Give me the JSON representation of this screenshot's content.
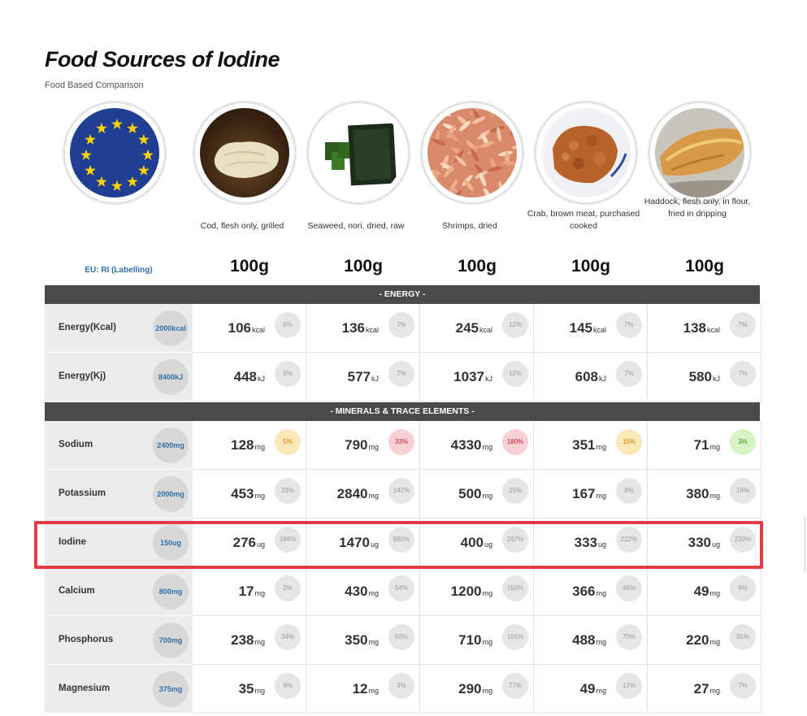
{
  "page": {
    "title": "Food Sources of Iodine",
    "subtitle": "Food Based Comparison"
  },
  "header": {
    "ri_label": "EU: RI (Labelling)"
  },
  "foods": [
    {
      "name": "Cod, flesh only, grilled",
      "amount": "100g"
    },
    {
      "name": "Seaweed, nori, dried, raw",
      "amount": "100g"
    },
    {
      "name": "Shrimps, dried",
      "amount": "100g"
    },
    {
      "name": "Crab, brown meat, purchased cooked",
      "amount": "100g"
    },
    {
      "name": "Haddock, flesh only, in flour, fried in dripping",
      "amount": "100g"
    }
  ],
  "sections": [
    {
      "title": "- ENERGY -",
      "rows": [
        {
          "name": "Energy(Kcal)",
          "ri": "2000kcal",
          "cells": [
            {
              "v": "106",
              "u": "kcal",
              "p": "5%",
              "c": ""
            },
            {
              "v": "136",
              "u": "kcal",
              "p": "7%",
              "c": ""
            },
            {
              "v": "245",
              "u": "kcal",
              "p": "12%",
              "c": ""
            },
            {
              "v": "145",
              "u": "kcal",
              "p": "7%",
              "c": ""
            },
            {
              "v": "138",
              "u": "kcal",
              "p": "7%",
              "c": ""
            }
          ]
        },
        {
          "name": "Energy(Kj)",
          "ri": "8400kJ",
          "cells": [
            {
              "v": "448",
              "u": "kJ",
              "p": "5%",
              "c": ""
            },
            {
              "v": "577",
              "u": "kJ",
              "p": "7%",
              "c": ""
            },
            {
              "v": "1037",
              "u": "kJ",
              "p": "12%",
              "c": ""
            },
            {
              "v": "608",
              "u": "kJ",
              "p": "7%",
              "c": ""
            },
            {
              "v": "580",
              "u": "kJ",
              "p": "7%",
              "c": ""
            }
          ]
        }
      ]
    },
    {
      "title": "- MINERALS & TRACE ELEMENTS -",
      "rows": [
        {
          "name": "Sodium",
          "ri": "2400mg",
          "cells": [
            {
              "v": "128",
              "u": "mg",
              "p": "5%",
              "c": "yellow"
            },
            {
              "v": "790",
              "u": "mg",
              "p": "33%",
              "c": "red"
            },
            {
              "v": "4330",
              "u": "mg",
              "p": "180%",
              "c": "red"
            },
            {
              "v": "351",
              "u": "mg",
              "p": "15%",
              "c": "yellow"
            },
            {
              "v": "71",
              "u": "mg",
              "p": "3%",
              "c": "green"
            }
          ]
        },
        {
          "name": "Potassium",
          "ri": "2000mg",
          "cells": [
            {
              "v": "453",
              "u": "mg",
              "p": "23%",
              "c": ""
            },
            {
              "v": "2840",
              "u": "mg",
              "p": "142%",
              "c": ""
            },
            {
              "v": "500",
              "u": "mg",
              "p": "25%",
              "c": ""
            },
            {
              "v": "167",
              "u": "mg",
              "p": "8%",
              "c": ""
            },
            {
              "v": "380",
              "u": "mg",
              "p": "19%",
              "c": ""
            }
          ]
        },
        {
          "name": "Iodine",
          "ri": "150ug",
          "cells": [
            {
              "v": "276",
              "u": "ug",
              "p": "184%",
              "c": ""
            },
            {
              "v": "1470",
              "u": "ug",
              "p": "980%",
              "c": ""
            },
            {
              "v": "400",
              "u": "ug",
              "p": "267%",
              "c": ""
            },
            {
              "v": "333",
              "u": "ug",
              "p": "222%",
              "c": ""
            },
            {
              "v": "330",
              "u": "ug",
              "p": "220%",
              "c": ""
            }
          ]
        },
        {
          "name": "Calcium",
          "ri": "800mg",
          "cells": [
            {
              "v": "17",
              "u": "mg",
              "p": "2%",
              "c": ""
            },
            {
              "v": "430",
              "u": "mg",
              "p": "54%",
              "c": ""
            },
            {
              "v": "1200",
              "u": "mg",
              "p": "150%",
              "c": ""
            },
            {
              "v": "366",
              "u": "mg",
              "p": "46%",
              "c": ""
            },
            {
              "v": "49",
              "u": "mg",
              "p": "6%",
              "c": ""
            }
          ]
        },
        {
          "name": "Phosphorus",
          "ri": "700mg",
          "cells": [
            {
              "v": "238",
              "u": "mg",
              "p": "34%",
              "c": ""
            },
            {
              "v": "350",
              "u": "mg",
              "p": "50%",
              "c": ""
            },
            {
              "v": "710",
              "u": "mg",
              "p": "101%",
              "c": ""
            },
            {
              "v": "488",
              "u": "mg",
              "p": "70%",
              "c": ""
            },
            {
              "v": "220",
              "u": "mg",
              "p": "31%",
              "c": ""
            }
          ]
        },
        {
          "name": "Magnesium",
          "ri": "375mg",
          "cells": [
            {
              "v": "35",
              "u": "mg",
              "p": "9%",
              "c": ""
            },
            {
              "v": "12",
              "u": "mg",
              "p": "3%",
              "c": ""
            },
            {
              "v": "290",
              "u": "mg",
              "p": "77%",
              "c": ""
            },
            {
              "v": "49",
              "u": "mg",
              "p": "13%",
              "c": ""
            },
            {
              "v": "27",
              "u": "mg",
              "p": "7%",
              "c": ""
            }
          ]
        }
      ]
    }
  ],
  "colors": {
    "highlight": "#e83a44",
    "section_bar": "#4a4a4a",
    "ri_text": "#2f6fa8",
    "eu_blue": "#1f3e94",
    "eu_star": "#ffd200"
  },
  "icons": {
    "eu": "eu-flag-icon",
    "foods": [
      "cod-food-image",
      "seaweed-food-image",
      "shrimps-food-image",
      "crab-food-image",
      "haddock-food-image"
    ]
  }
}
